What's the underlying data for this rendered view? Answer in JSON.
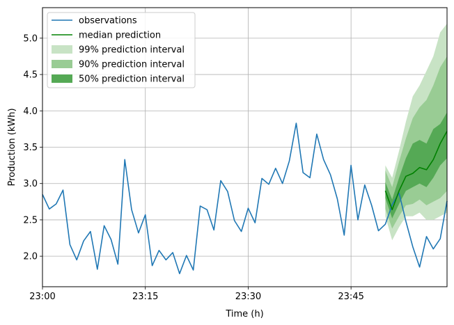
{
  "chart_data": {
    "type": "line",
    "title": "",
    "xlabel": "Time (h)",
    "ylabel": "Production (kWh)",
    "x_unit": "minutes after 23:00",
    "xlim": [
      0,
      59
    ],
    "ylim": [
      1.58,
      5.42
    ],
    "x_ticks": [
      {
        "value": 0,
        "label": "23:00"
      },
      {
        "value": 15,
        "label": "23:15"
      },
      {
        "value": 30,
        "label": "23:30"
      },
      {
        "value": 45,
        "label": "23:45"
      }
    ],
    "y_ticks": [
      {
        "value": 2.0,
        "label": "2.0"
      },
      {
        "value": 2.5,
        "label": "2.5"
      },
      {
        "value": 3.0,
        "label": "3.0"
      },
      {
        "value": 3.5,
        "label": "3.5"
      },
      {
        "value": 4.0,
        "label": "4.0"
      },
      {
        "value": 4.5,
        "label": "4.5"
      },
      {
        "value": 5.0,
        "label": "5.0"
      }
    ],
    "grid": true,
    "legend": {
      "placement": "top-left",
      "entries": [
        {
          "label": "observations",
          "kind": "line",
          "color": "#1f77b4"
        },
        {
          "label": "median prediction",
          "kind": "line",
          "color": "#008000"
        },
        {
          "label": "99% prediction interval",
          "kind": "patch",
          "color": "#c8e3c5"
        },
        {
          "label": "90% prediction interval",
          "kind": "patch",
          "color": "#99cc94"
        },
        {
          "label": "50% prediction interval",
          "kind": "patch",
          "color": "#55a955"
        }
      ]
    },
    "observations": {
      "name": "observations",
      "color": "#1f77b4",
      "x": [
        0,
        1,
        2,
        3,
        4,
        5,
        6,
        7,
        8,
        9,
        10,
        11,
        12,
        13,
        14,
        15,
        16,
        17,
        18,
        19,
        20,
        21,
        22,
        23,
        24,
        25,
        26,
        27,
        28,
        29,
        30,
        31,
        32,
        33,
        34,
        35,
        36,
        37,
        38,
        39,
        40,
        41,
        42,
        43,
        44,
        45,
        46,
        47,
        48,
        49,
        50,
        51,
        52,
        53,
        54,
        55,
        56,
        57,
        58,
        59
      ],
      "y": [
        2.85,
        2.65,
        2.72,
        2.91,
        2.16,
        1.95,
        2.21,
        2.34,
        1.82,
        2.42,
        2.23,
        1.89,
        3.33,
        2.64,
        2.32,
        2.57,
        1.87,
        2.08,
        1.95,
        2.05,
        1.76,
        2.01,
        1.81,
        2.69,
        2.64,
        2.36,
        3.04,
        2.89,
        2.49,
        2.34,
        2.66,
        2.46,
        3.07,
        2.99,
        3.21,
        3.0,
        3.31,
        3.83,
        3.15,
        3.08,
        3.68,
        3.33,
        3.12,
        2.79,
        2.29,
        3.25,
        2.5,
        2.98,
        2.7,
        2.35,
        2.44,
        2.71,
        2.87,
        2.48,
        2.13,
        1.85,
        2.27,
        2.1,
        2.24,
        2.76
      ]
    },
    "forecast": {
      "x": [
        50,
        51,
        52,
        53,
        54,
        55,
        56,
        57,
        58,
        59
      ],
      "median": {
        "name": "median prediction",
        "color": "#008000",
        "values": [
          2.9,
          2.64,
          2.9,
          3.1,
          3.14,
          3.22,
          3.19,
          3.33,
          3.55,
          3.72
        ]
      },
      "bands": [
        {
          "name": "99% prediction interval",
          "color": "#c8e3c5",
          "lower": [
            2.55,
            2.22,
            2.4,
            2.55,
            2.55,
            2.6,
            2.5,
            2.5,
            2.55,
            2.6
          ],
          "upper": [
            3.25,
            3.08,
            3.45,
            3.85,
            4.2,
            4.35,
            4.55,
            4.75,
            5.08,
            5.2
          ]
        },
        {
          "name": "90% prediction interval",
          "color": "#99cc94",
          "lower": [
            2.65,
            2.38,
            2.55,
            2.7,
            2.72,
            2.78,
            2.7,
            2.75,
            2.8,
            2.9
          ],
          "upper": [
            3.18,
            2.95,
            3.3,
            3.62,
            3.9,
            4.05,
            4.15,
            4.35,
            4.6,
            4.75
          ]
        },
        {
          "name": "50% prediction interval",
          "color": "#55a955",
          "lower": [
            2.8,
            2.52,
            2.72,
            2.9,
            2.95,
            3.0,
            2.95,
            3.08,
            3.25,
            3.35
          ],
          "upper": [
            3.02,
            2.78,
            3.08,
            3.35,
            3.55,
            3.6,
            3.55,
            3.75,
            3.82,
            3.98
          ]
        }
      ]
    }
  }
}
